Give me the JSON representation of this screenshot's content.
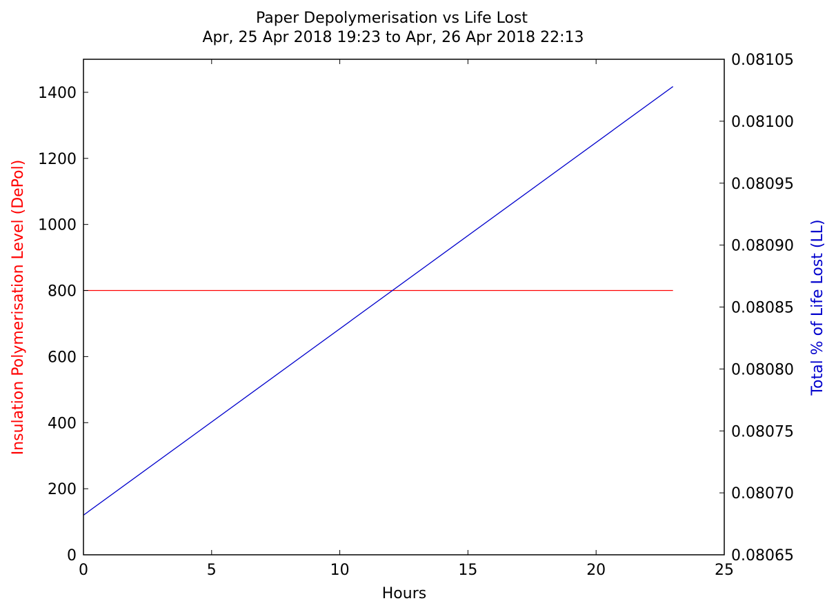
{
  "chart_data": {
    "type": "line",
    "title": "Paper Depolymerisation vs Life Lost",
    "subtitle": "Apr, 25 Apr 2018 19:23 to Apr, 26 Apr 2018 22:13",
    "xlabel": "Hours",
    "ylabel_left": "Insulation Polymerisation Level (DePol)",
    "ylabel_right": "Total % of Life Lost (LL)",
    "xlim": [
      0,
      25
    ],
    "ylim_left": [
      0,
      1500
    ],
    "ylim_right": [
      0.08065,
      0.08105
    ],
    "x_ticks": [
      "0",
      "5",
      "10",
      "15",
      "20",
      "25"
    ],
    "y_left_ticks": [
      "0",
      "200",
      "400",
      "600",
      "800",
      "1000",
      "1200",
      "1400"
    ],
    "y_right_ticks": [
      "0.08065",
      "0.08070",
      "0.08075",
      "0.08080",
      "0.08085",
      "0.08090",
      "0.08095",
      "0.08100",
      "0.08105"
    ],
    "grid": false,
    "series": [
      {
        "axis": "left",
        "color": "#ff0000",
        "x": [
          0,
          23
        ],
        "values": [
          800,
          800
        ]
      },
      {
        "axis": "right",
        "color": "#0000cc",
        "x": [
          0,
          23
        ],
        "values": [
          0.080682,
          0.081028
        ]
      }
    ],
    "colors": {
      "left_axis_label": "#ff0000",
      "right_axis_label": "#0000cc"
    }
  }
}
